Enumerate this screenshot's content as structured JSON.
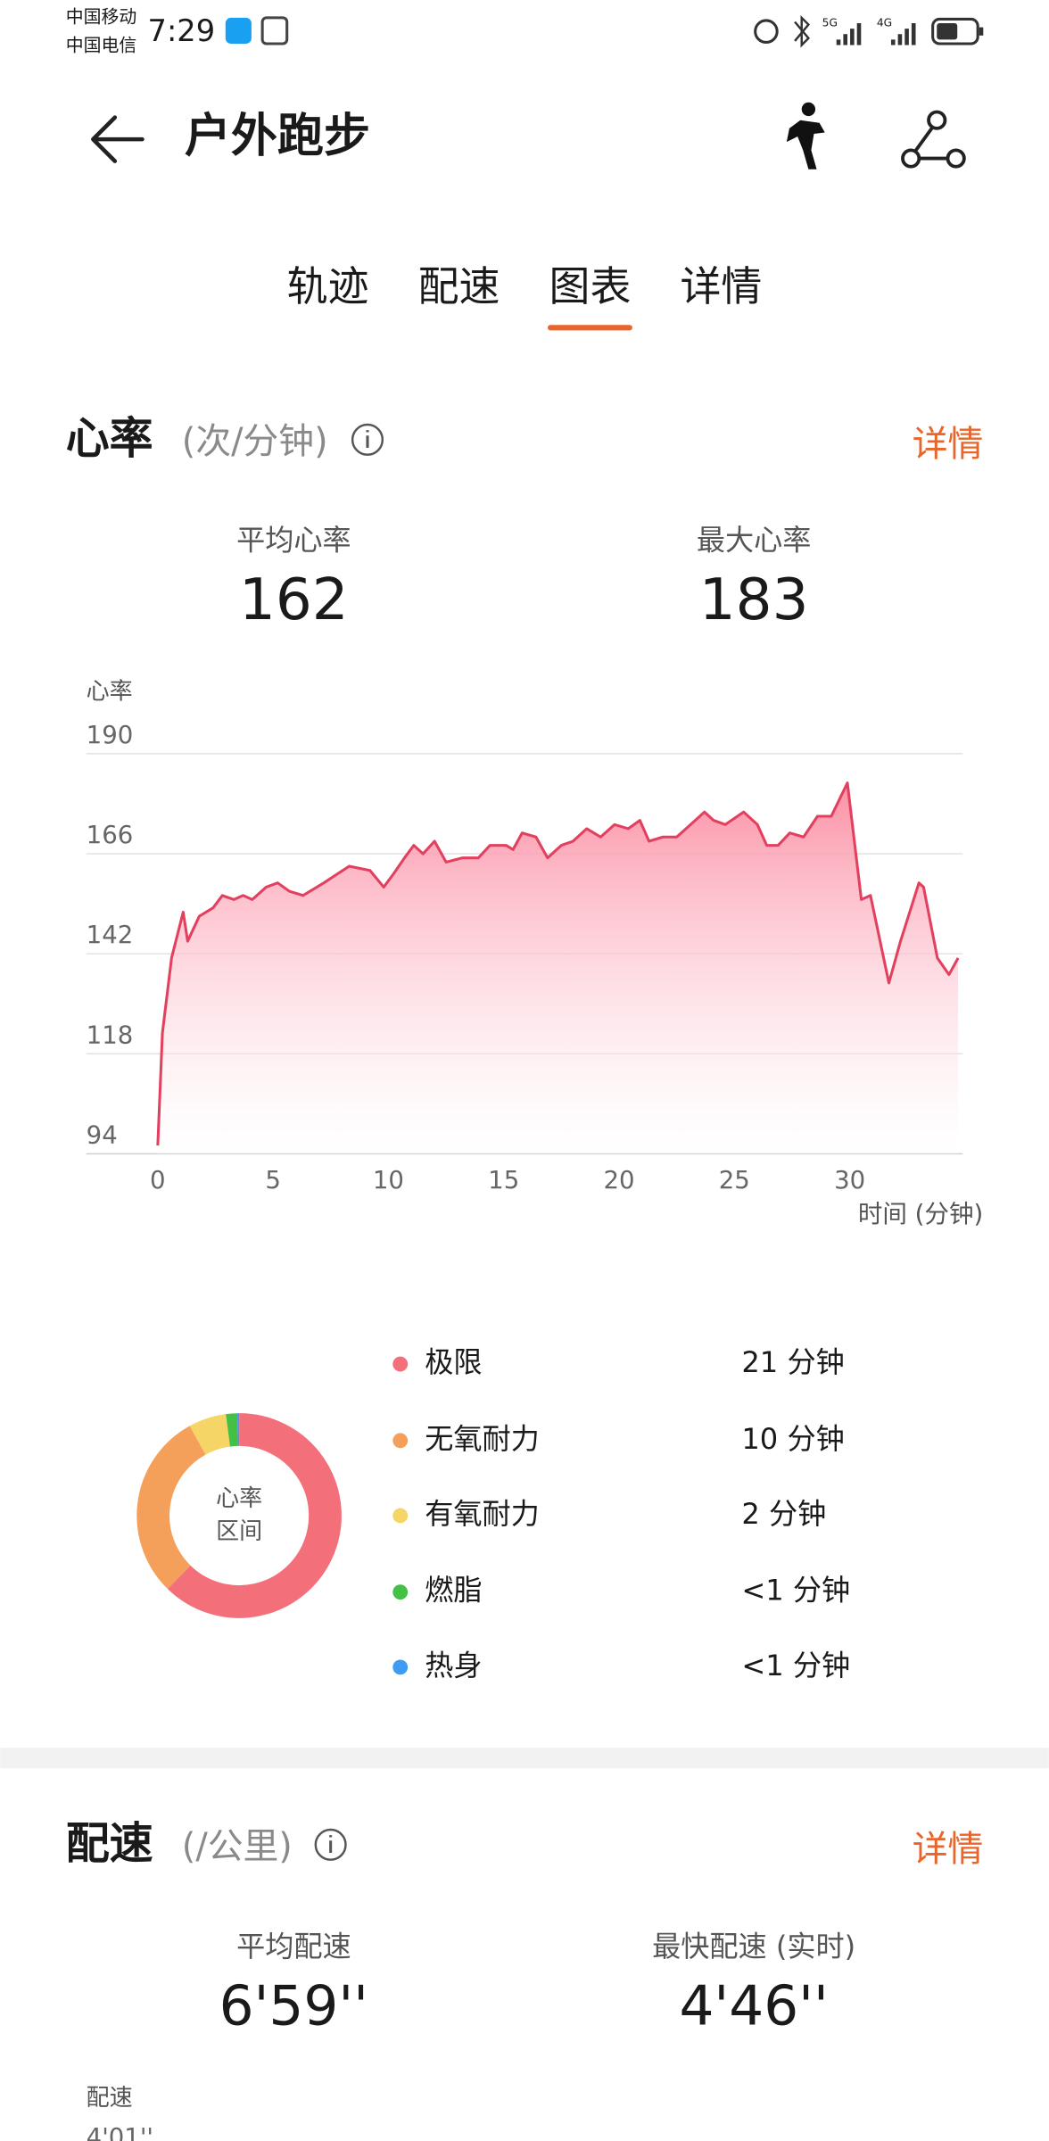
{
  "status_bar": {
    "carrier_1": "中国移动",
    "carrier_2": "中国电信",
    "time": "7:29",
    "signal_1": "5G",
    "signal_2": "4G"
  },
  "header": {
    "title": "户外跑步"
  },
  "tabs": {
    "items": [
      "轨迹",
      "配速",
      "图表",
      "详情"
    ],
    "active": 2
  },
  "heart_rate": {
    "title": "心率",
    "unit": "(次/分钟)",
    "detail": "详情",
    "avg_label": "平均心率",
    "avg_value": "162",
    "max_label": "最大心率",
    "max_value": "183",
    "chart": {
      "type": "area",
      "y_label": "心率",
      "x_label": "时间 (分钟)",
      "color": "#e3405f",
      "fill": "#fb8aa0",
      "grid": true,
      "xlim": [
        -3.1,
        34.9
      ],
      "ylim": [
        94,
        190
      ],
      "xticks": [
        0,
        5,
        10,
        15,
        20,
        25,
        30
      ],
      "yticks": [
        94,
        118,
        142,
        166,
        190
      ],
      "x": [
        0,
        0.2,
        0.6,
        1.1,
        1.3,
        1.8,
        2.4,
        2.8,
        3.3,
        3.7,
        4.1,
        4.7,
        5.2,
        5.7,
        6.3,
        7.2,
        8.3,
        9.2,
        9.8,
        10.2,
        10.7,
        11.1,
        11.5,
        12.0,
        12.5,
        13.2,
        13.9,
        14.4,
        15.1,
        15.4,
        15.8,
        16.4,
        16.9,
        17.5,
        18.0,
        18.6,
        19.2,
        19.8,
        20.4,
        20.9,
        21.3,
        21.9,
        22.5,
        23.1,
        23.7,
        24.1,
        24.6,
        25.4,
        26.0,
        26.4,
        26.9,
        27.4,
        28.0,
        28.6,
        29.2,
        29.9,
        30.5,
        30.9,
        31.7,
        32.2,
        33.0,
        33.2,
        33.8,
        34.3,
        34.7
      ],
      "values": [
        96,
        123,
        141,
        152,
        145,
        151,
        153,
        156,
        155,
        156,
        155,
        158,
        159,
        157,
        156,
        159,
        163,
        162,
        158,
        161,
        165,
        168,
        166,
        169,
        164,
        165,
        165,
        168,
        168,
        167,
        171,
        170,
        165,
        168,
        169,
        172,
        170,
        173,
        172,
        174,
        169,
        170,
        170,
        173,
        176,
        174,
        173,
        176,
        173,
        168,
        168,
        171,
        170,
        175,
        175,
        183,
        155,
        156,
        135,
        145,
        159,
        158,
        141,
        137,
        141
      ]
    },
    "zones": {
      "type": "donut",
      "center_label": [
        "心率",
        "区间"
      ],
      "items": [
        {
          "name": "极限",
          "time": "21 分钟",
          "minutes": 21,
          "color": "#f3707a"
        },
        {
          "name": "无氧耐力",
          "time": "10 分钟",
          "minutes": 10,
          "color": "#f5a05a"
        },
        {
          "name": "有氧耐力",
          "time": "2 分钟",
          "minutes": 2,
          "color": "#f5d565"
        },
        {
          "name": "燃脂",
          "time": "<1 分钟",
          "minutes": 0.6,
          "color": "#44c144"
        },
        {
          "name": "热身",
          "time": "<1 分钟",
          "minutes": 0.1,
          "color": "#3f9cf2"
        }
      ]
    }
  },
  "pace": {
    "title": "配速",
    "unit": "(/公里)",
    "detail": "详情",
    "avg_label": "平均配速",
    "avg_value": "6'59''",
    "max_label": "最快配速 (实时)",
    "max_value": "4'46''",
    "chart_label": "配速",
    "first_tick": "4'01''"
  }
}
